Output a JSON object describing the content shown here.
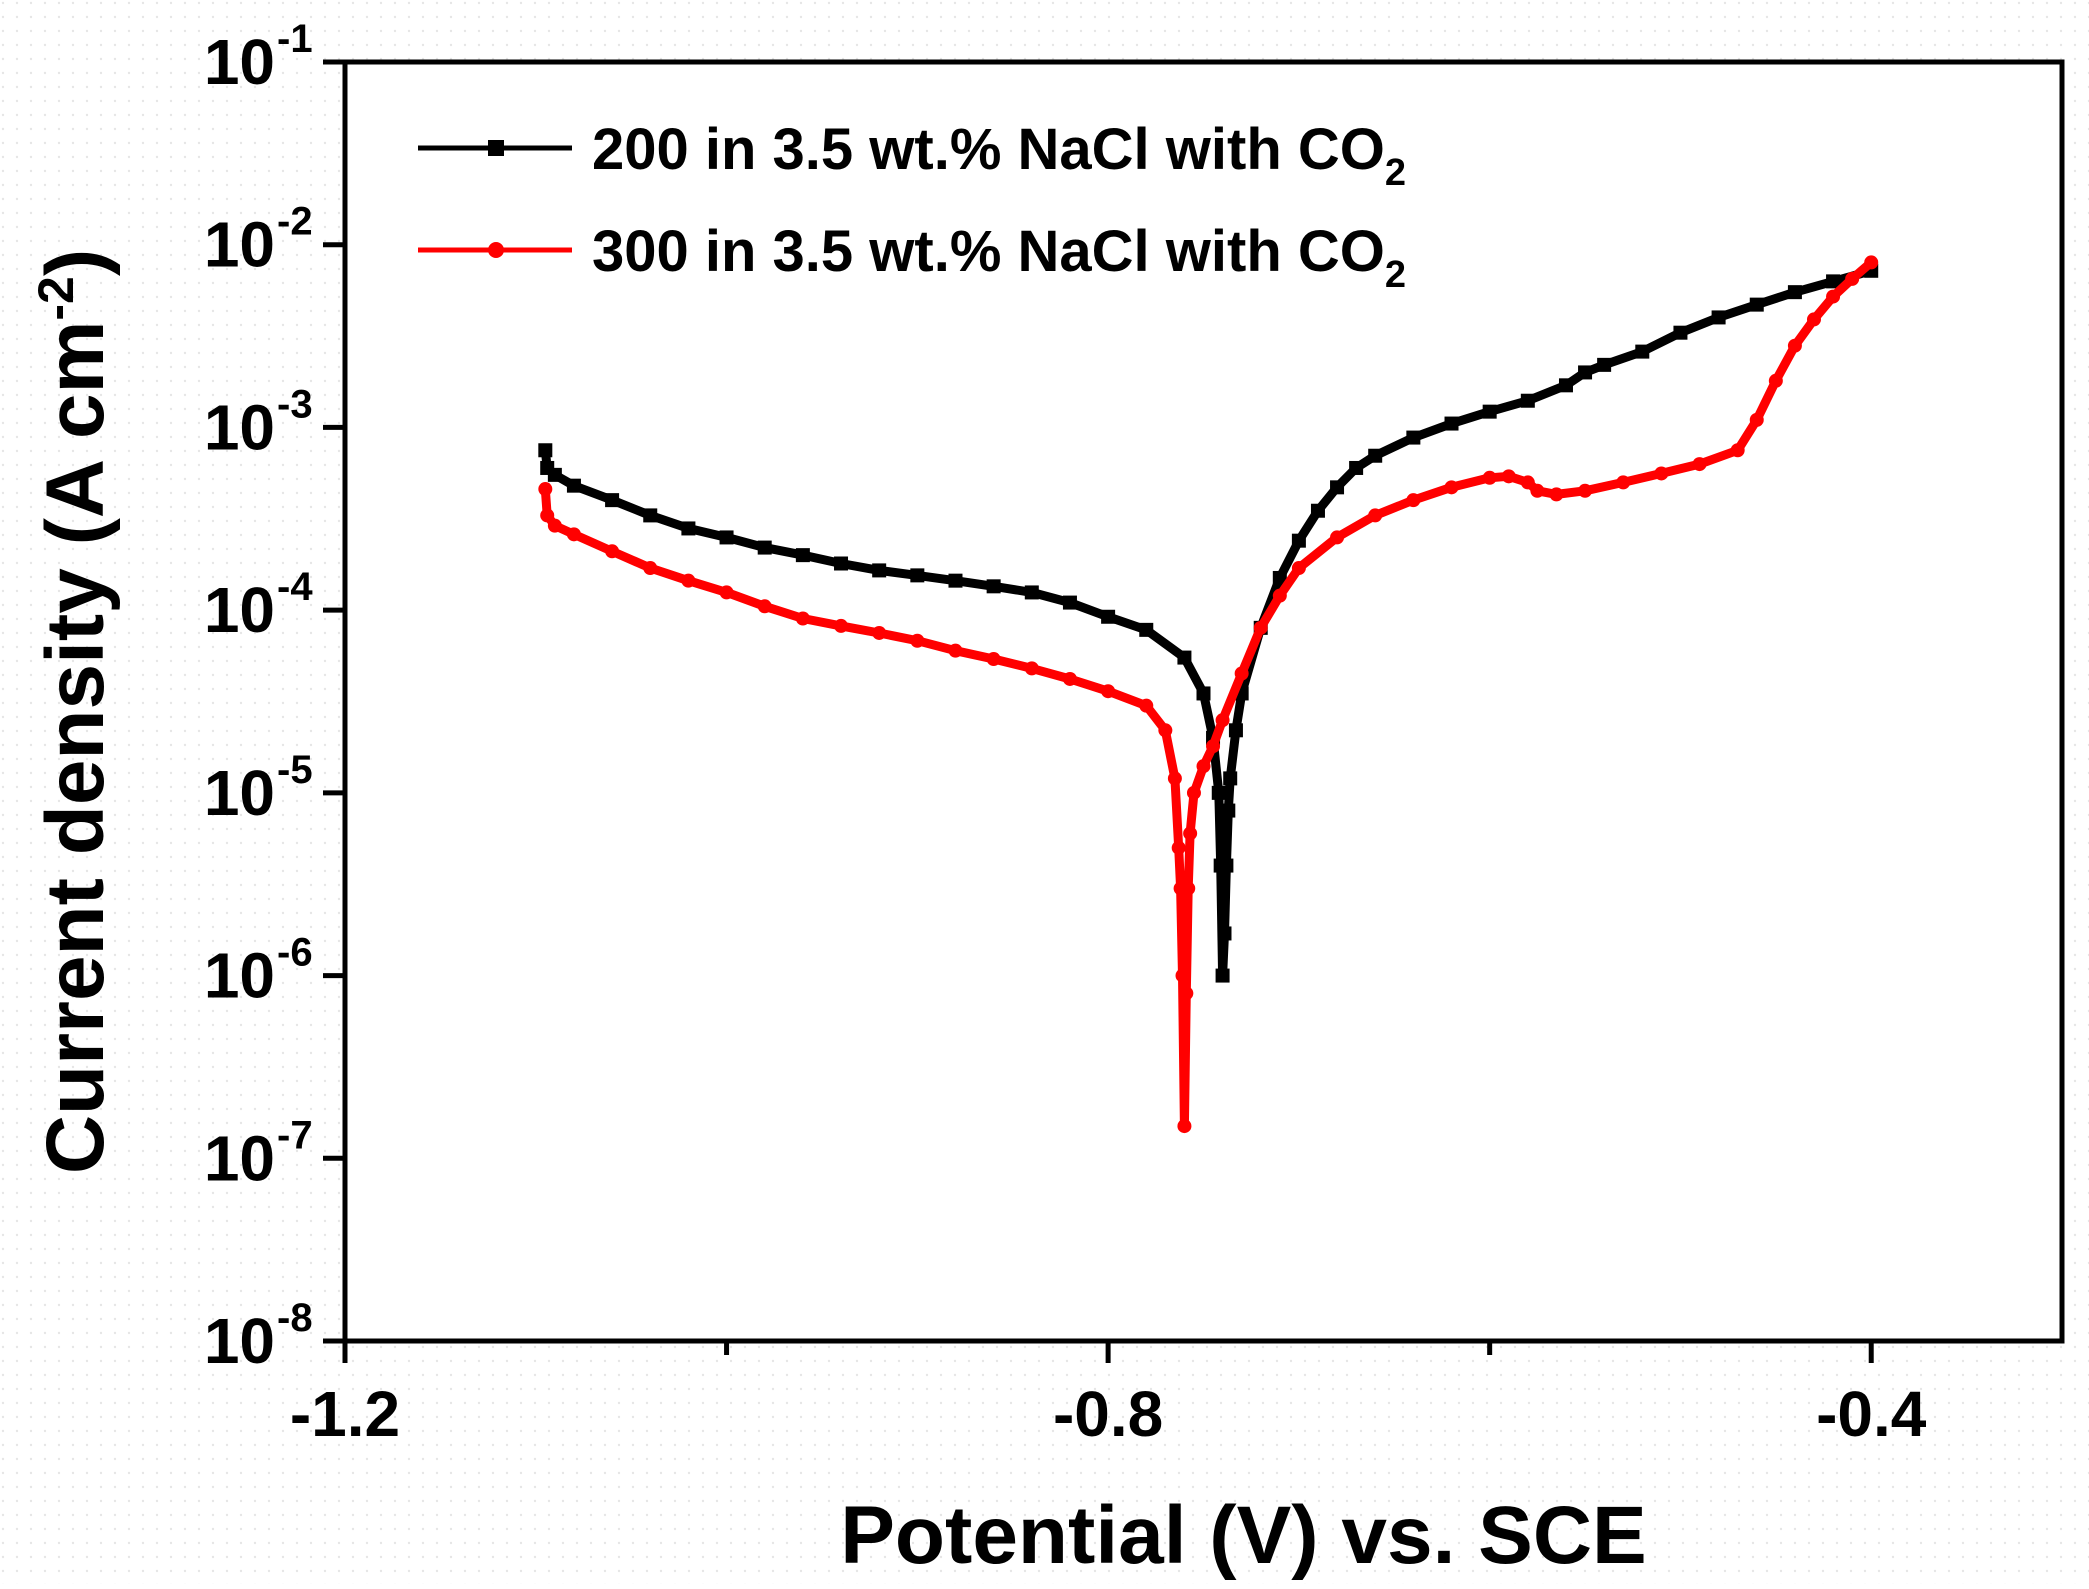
{
  "chart_data": {
    "type": "line",
    "title": "",
    "xlabel": "Potential (V) vs. SCE",
    "ylabel": {
      "main": "Current density (A cm",
      "superscript": "-2",
      "close": ")"
    },
    "xscale": "linear",
    "yscale": "log",
    "xlim": [
      -1.2,
      -0.3
    ],
    "ylim": [
      1e-08,
      0.1
    ],
    "x_ticks": [
      {
        "value": -1.2,
        "label": "-1.2"
      },
      {
        "value": -0.8,
        "label": "-0.8"
      },
      {
        "value": -0.4,
        "label": "-0.4"
      }
    ],
    "y_ticks": [
      {
        "value": 0.1,
        "base": "10",
        "exp": "-1"
      },
      {
        "value": 0.01,
        "base": "10",
        "exp": "-2"
      },
      {
        "value": 0.001,
        "base": "10",
        "exp": "-3"
      },
      {
        "value": 0.0001,
        "base": "10",
        "exp": "-4"
      },
      {
        "value": 1e-05,
        "base": "10",
        "exp": "-5"
      },
      {
        "value": 1e-06,
        "base": "10",
        "exp": "-6"
      },
      {
        "value": 1e-07,
        "base": "10",
        "exp": "-7"
      },
      {
        "value": 1e-08,
        "base": "10",
        "exp": "-8"
      }
    ],
    "legend_position": "top-left",
    "series": [
      {
        "name": "200 in 3.5 wt.% NaCl with CO2",
        "label_main": "200 in 3.5 wt.% NaCl with CO",
        "label_sub": "2",
        "color": "#000000",
        "marker": "square",
        "points": [
          [
            -1.095,
            0.00075
          ],
          [
            -1.094,
            0.0006
          ],
          [
            -1.09,
            0.00055
          ],
          [
            -1.08,
            0.00048
          ],
          [
            -1.06,
            0.0004
          ],
          [
            -1.04,
            0.00033
          ],
          [
            -1.02,
            0.00028
          ],
          [
            -1.0,
            0.00025
          ],
          [
            -0.98,
            0.00022
          ],
          [
            -0.96,
            0.0002
          ],
          [
            -0.94,
            0.00018
          ],
          [
            -0.92,
            0.000165
          ],
          [
            -0.9,
            0.000155
          ],
          [
            -0.88,
            0.000145
          ],
          [
            -0.86,
            0.000135
          ],
          [
            -0.84,
            0.000125
          ],
          [
            -0.82,
            0.00011
          ],
          [
            -0.8,
            9.2e-05
          ],
          [
            -0.78,
            7.8e-05
          ],
          [
            -0.76,
            5.5e-05
          ],
          [
            -0.75,
            3.5e-05
          ],
          [
            -0.745,
            2e-05
          ],
          [
            -0.742,
            1e-05
          ],
          [
            -0.741,
            4e-06
          ],
          [
            -0.74,
            1e-06
          ],
          [
            -0.739,
            1.7e-06
          ],
          [
            -0.738,
            4e-06
          ],
          [
            -0.737,
            8e-06
          ],
          [
            -0.736,
            1.2e-05
          ],
          [
            -0.733,
            2.2e-05
          ],
          [
            -0.73,
            3.5e-05
          ],
          [
            -0.72,
            8e-05
          ],
          [
            -0.71,
            0.00015
          ],
          [
            -0.7,
            0.00024
          ],
          [
            -0.69,
            0.00035
          ],
          [
            -0.68,
            0.00047
          ],
          [
            -0.67,
            0.0006
          ],
          [
            -0.66,
            0.0007
          ],
          [
            -0.64,
            0.00088
          ],
          [
            -0.62,
            0.00105
          ],
          [
            -0.6,
            0.00122
          ],
          [
            -0.58,
            0.0014
          ],
          [
            -0.56,
            0.0017
          ],
          [
            -0.55,
            0.002
          ],
          [
            -0.54,
            0.0022
          ],
          [
            -0.52,
            0.0026
          ],
          [
            -0.5,
            0.0033
          ],
          [
            -0.48,
            0.004
          ],
          [
            -0.46,
            0.0047
          ],
          [
            -0.44,
            0.0055
          ],
          [
            -0.42,
            0.0063
          ],
          [
            -0.4,
            0.0072
          ]
        ]
      },
      {
        "name": "300 in 3.5 wt.% NaCl with CO2",
        "label_main": "300 in 3.5 wt.% NaCl with CO",
        "label_sub": "2",
        "color": "#ff0000",
        "marker": "circle",
        "points": [
          [
            -1.095,
            0.00046
          ],
          [
            -1.094,
            0.00033
          ],
          [
            -1.09,
            0.00029
          ],
          [
            -1.08,
            0.00026
          ],
          [
            -1.06,
            0.00021
          ],
          [
            -1.04,
            0.00017
          ],
          [
            -1.02,
            0.000145
          ],
          [
            -1.0,
            0.000125
          ],
          [
            -0.98,
            0.000105
          ],
          [
            -0.96,
            9e-05
          ],
          [
            -0.94,
            8.2e-05
          ],
          [
            -0.92,
            7.5e-05
          ],
          [
            -0.9,
            6.8e-05
          ],
          [
            -0.88,
            6e-05
          ],
          [
            -0.86,
            5.4e-05
          ],
          [
            -0.84,
            4.8e-05
          ],
          [
            -0.82,
            4.2e-05
          ],
          [
            -0.8,
            3.6e-05
          ],
          [
            -0.78,
            3e-05
          ],
          [
            -0.77,
            2.2e-05
          ],
          [
            -0.765,
            1.2e-05
          ],
          [
            -0.763,
            5e-06
          ],
          [
            -0.762,
            3e-06
          ],
          [
            -0.761,
            1e-06
          ],
          [
            -0.76,
            1.5e-07
          ],
          [
            -0.759,
            8e-07
          ],
          [
            -0.758,
            3e-06
          ],
          [
            -0.757,
            6e-06
          ],
          [
            -0.755,
            1e-05
          ],
          [
            -0.75,
            1.4e-05
          ],
          [
            -0.745,
            1.8e-05
          ],
          [
            -0.74,
            2.5e-05
          ],
          [
            -0.73,
            4.5e-05
          ],
          [
            -0.72,
            8e-05
          ],
          [
            -0.71,
            0.00012
          ],
          [
            -0.7,
            0.00017
          ],
          [
            -0.68,
            0.00025
          ],
          [
            -0.66,
            0.00033
          ],
          [
            -0.64,
            0.0004
          ],
          [
            -0.62,
            0.00047
          ],
          [
            -0.6,
            0.00053
          ],
          [
            -0.59,
            0.00054
          ],
          [
            -0.58,
            0.0005
          ],
          [
            -0.575,
            0.00045
          ],
          [
            -0.565,
            0.00043
          ],
          [
            -0.55,
            0.00045
          ],
          [
            -0.53,
            0.0005
          ],
          [
            -0.51,
            0.00056
          ],
          [
            -0.49,
            0.00063
          ],
          [
            -0.47,
            0.00075
          ],
          [
            -0.46,
            0.0011
          ],
          [
            -0.45,
            0.0018
          ],
          [
            -0.44,
            0.0028
          ],
          [
            -0.43,
            0.0039
          ],
          [
            -0.42,
            0.0052
          ],
          [
            -0.41,
            0.0065
          ],
          [
            -0.4,
            0.008
          ]
        ]
      }
    ]
  }
}
